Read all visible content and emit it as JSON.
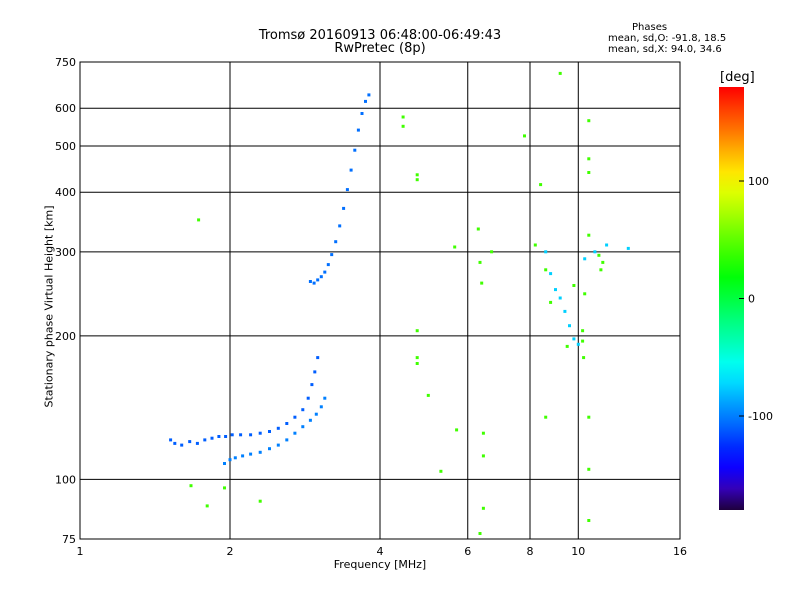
{
  "header": {
    "title_line1": "Tromsø 20160913 06:48:00-06:49:43",
    "title_line2": "RwPretec (8p)",
    "phases_heading": "Phases",
    "phases_line0": "mean, sd,O: -91.8, 18.5",
    "phases_line1": "mean, sd,X:  94.0, 34.6"
  },
  "colorbar": {
    "unit": "[deg]",
    "range": [
      -180,
      180
    ],
    "ticks": [
      100,
      0,
      -100
    ],
    "tick_labels": [
      "100",
      "0",
      "-100"
    ]
  },
  "chart_data": {
    "type": "scatter",
    "xlabel": "Frequency [MHz]",
    "ylabel": "Stationary phase Virtual Height [km]",
    "xscale": "log",
    "yscale": "log",
    "xlim": [
      1,
      16
    ],
    "ylim": [
      75,
      750
    ],
    "xticks": [
      1,
      2,
      4,
      6,
      8,
      10,
      16
    ],
    "xtick_labels": [
      "1",
      "2",
      "4",
      "6",
      "8",
      "10",
      "16"
    ],
    "yticks": [
      75,
      100,
      200,
      300,
      400,
      500,
      600,
      750
    ],
    "ytick_labels": [
      "75",
      "100",
      "200",
      "300",
      "400",
      "500",
      "600",
      "750"
    ],
    "grid": true,
    "traces": [
      {
        "name": "",
        "points": [
          [
            1.52,
            121
          ],
          [
            1.55,
            119
          ],
          [
            1.6,
            118
          ],
          [
            1.66,
            120
          ],
          [
            1.72,
            119
          ],
          [
            1.78,
            121
          ],
          [
            1.84,
            122
          ],
          [
            1.9,
            123
          ],
          [
            1.96,
            123
          ],
          [
            2.02,
            124
          ],
          [
            2.1,
            124
          ],
          [
            2.2,
            124
          ],
          [
            2.3,
            125
          ],
          [
            2.4,
            126
          ],
          [
            2.5,
            128
          ],
          [
            2.6,
            131
          ],
          [
            2.7,
            135
          ],
          [
            2.8,
            140
          ],
          [
            2.87,
            148
          ],
          [
            2.92,
            158
          ],
          [
            2.96,
            168
          ],
          [
            3.0,
            180
          ]
        ],
        "phase": -110
      },
      {
        "name": "",
        "points": [
          [
            1.95,
            108
          ],
          [
            2.0,
            110
          ],
          [
            2.05,
            111
          ],
          [
            2.12,
            112
          ],
          [
            2.2,
            113
          ],
          [
            2.3,
            114
          ],
          [
            2.4,
            116
          ],
          [
            2.5,
            118
          ],
          [
            2.6,
            121
          ],
          [
            2.7,
            125
          ],
          [
            2.8,
            129
          ],
          [
            2.9,
            133
          ],
          [
            2.98,
            137
          ],
          [
            3.05,
            142
          ],
          [
            3.1,
            148
          ]
        ],
        "phase": -100
      },
      {
        "name": "",
        "points": [
          [
            2.9,
            260
          ],
          [
            2.95,
            258
          ],
          [
            3.0,
            262
          ],
          [
            3.05,
            266
          ],
          [
            3.1,
            272
          ],
          [
            3.15,
            282
          ],
          [
            3.2,
            296
          ],
          [
            3.26,
            315
          ],
          [
            3.32,
            340
          ],
          [
            3.38,
            370
          ],
          [
            3.44,
            405
          ],
          [
            3.5,
            445
          ],
          [
            3.56,
            490
          ],
          [
            3.62,
            540
          ],
          [
            3.68,
            585
          ],
          [
            3.74,
            620
          ],
          [
            3.8,
            640
          ]
        ],
        "phase": -105
      },
      {
        "name": "",
        "points": [
          [
            8.6,
            300
          ],
          [
            8.8,
            270
          ],
          [
            9.0,
            250
          ],
          [
            9.2,
            240
          ],
          [
            9.4,
            225
          ],
          [
            9.6,
            210
          ],
          [
            9.8,
            197
          ],
          [
            10.0,
            192
          ],
          [
            10.3,
            290
          ],
          [
            10.8,
            300
          ],
          [
            11.4,
            310
          ],
          [
            12.6,
            305
          ]
        ],
        "phase": -75
      },
      {
        "name": "",
        "points": [
          [
            1.73,
            350
          ],
          [
            1.8,
            88
          ],
          [
            1.67,
            97
          ],
          [
            1.95,
            96
          ],
          [
            2.3,
            90
          ],
          [
            4.45,
            575
          ],
          [
            4.45,
            550
          ],
          [
            4.75,
            435
          ],
          [
            4.75,
            425
          ],
          [
            4.75,
            205
          ],
          [
            4.75,
            180
          ],
          [
            4.75,
            175
          ],
          [
            5.0,
            150
          ],
          [
            5.3,
            104
          ],
          [
            5.65,
            307
          ],
          [
            5.7,
            127
          ],
          [
            6.3,
            335
          ],
          [
            6.35,
            285
          ],
          [
            6.4,
            258
          ],
          [
            6.45,
            125
          ],
          [
            6.45,
            112
          ],
          [
            6.45,
            87
          ],
          [
            6.35,
            77
          ],
          [
            6.7,
            300
          ],
          [
            7.8,
            525
          ],
          [
            8.2,
            310
          ],
          [
            8.4,
            415
          ],
          [
            8.6,
            275
          ],
          [
            8.6,
            135
          ],
          [
            8.8,
            235
          ],
          [
            9.2,
            710
          ],
          [
            9.5,
            190
          ],
          [
            10.5,
            565
          ],
          [
            10.5,
            470
          ],
          [
            10.5,
            440
          ],
          [
            10.5,
            325
          ],
          [
            10.5,
            135
          ],
          [
            10.5,
            105
          ],
          [
            10.5,
            82
          ],
          [
            10.2,
            205
          ],
          [
            10.2,
            195
          ],
          [
            10.3,
            245
          ],
          [
            10.25,
            180
          ],
          [
            9.8,
            255
          ],
          [
            11.0,
            295
          ],
          [
            11.2,
            285
          ],
          [
            11.1,
            275
          ]
        ],
        "phase": 40
      }
    ]
  }
}
